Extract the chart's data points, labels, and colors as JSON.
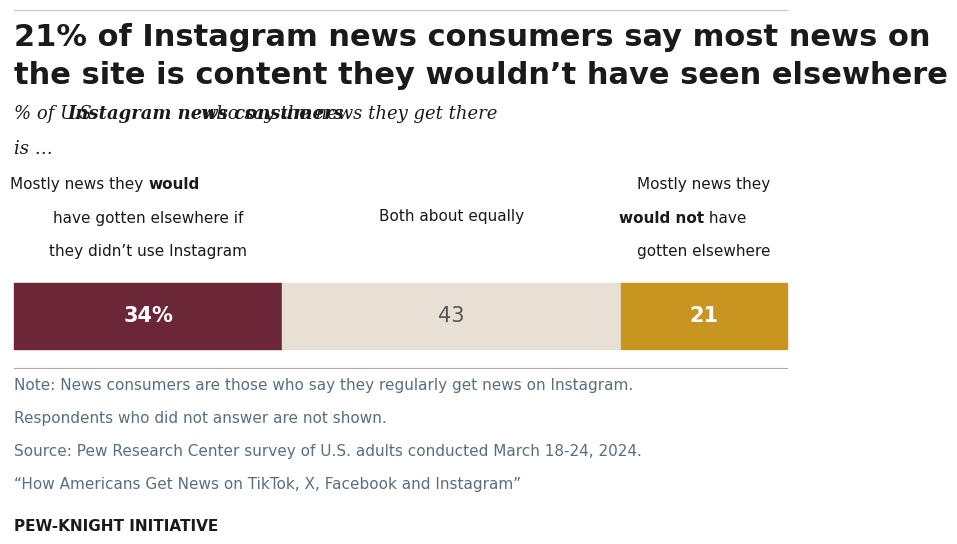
{
  "title_line1": "21% of Instagram news consumers say most news on",
  "title_line2": "the site is content they wouldn’t have seen elsewhere",
  "bar_values": [
    34,
    43,
    21
  ],
  "bar_labels": [
    "34%",
    "43",
    "21"
  ],
  "bar_colors": [
    "#6b2737",
    "#e8e0d5",
    "#c89520"
  ],
  "bar_label_colors": [
    "#ffffff",
    "#555555",
    "#ffffff"
  ],
  "note_lines": [
    "Note: News consumers are those who say they regularly get news on Instagram.",
    "Respondents who did not answer are not shown.",
    "Source: Pew Research Center survey of U.S. adults conducted March 18-24, 2024.",
    "“How Americans Get News on TikTok, X, Facebook and Instagram”"
  ],
  "footer_text": "PEW-KNIGHT INITIATIVE",
  "background_color": "#ffffff",
  "text_color": "#1a1a1a",
  "note_color": "#5a6e7f",
  "title_fontsize": 22,
  "subtitle_fontsize": 13,
  "label_fontsize": 11,
  "bar_label_fontsize": 15,
  "note_fontsize": 11,
  "footer_fontsize": 11
}
